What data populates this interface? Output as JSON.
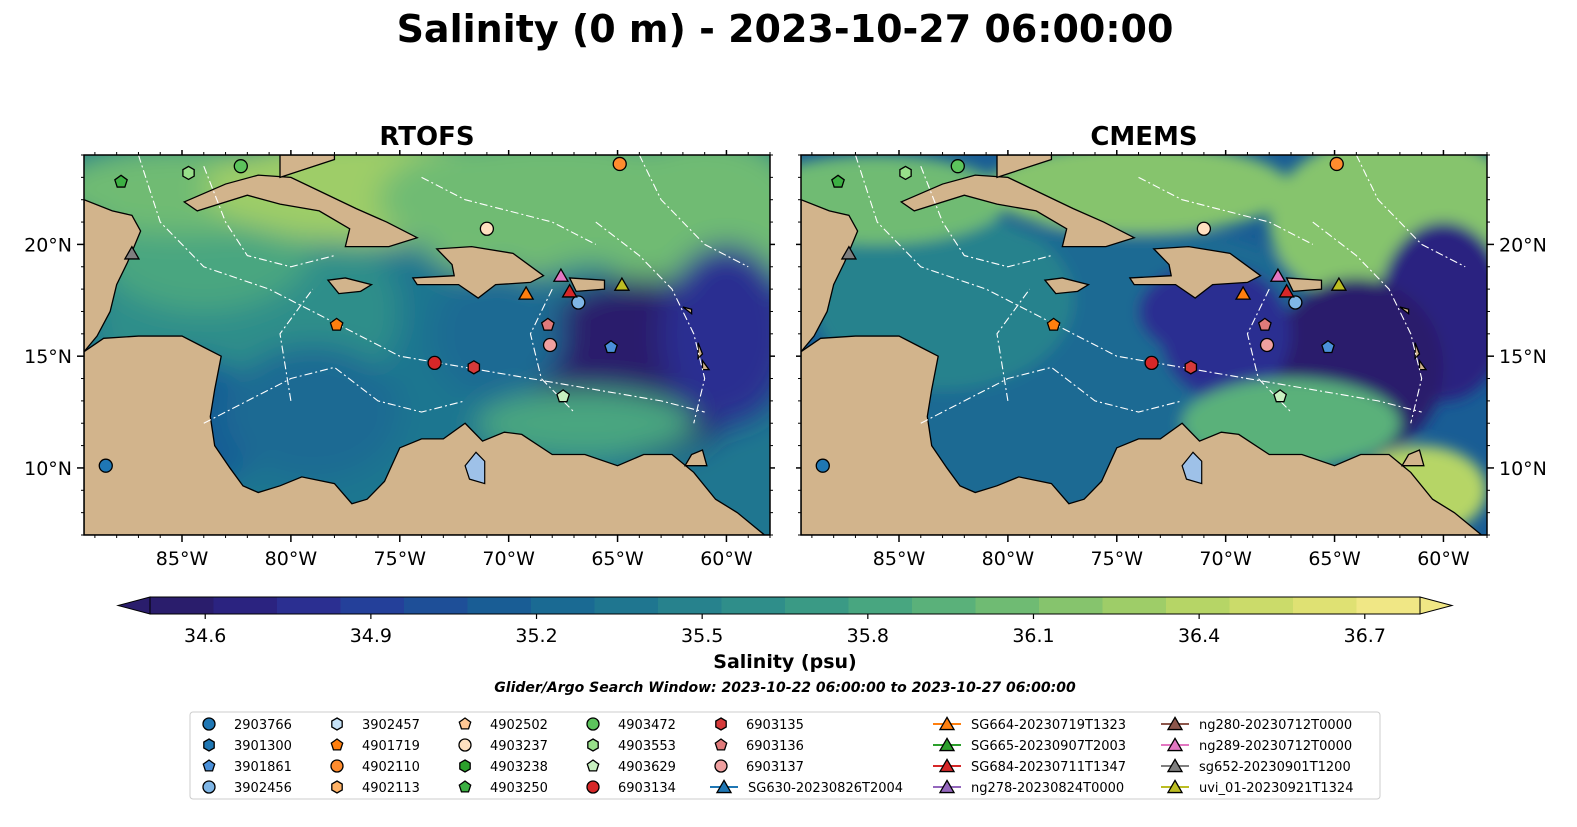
{
  "title": "Salinity (0 m) - 2023-10-27 06:00:00",
  "colors": {
    "land": "#d2b48c",
    "lake": "#9ec1e8",
    "contour": "#ffffff",
    "coast": "#000000"
  },
  "chart_data": [
    {
      "type": "heatmap",
      "title": "RTOFS",
      "model": "rtofs",
      "xlim": [
        -89.5,
        -58.0
      ],
      "ylim": [
        7.0,
        24.0
      ],
      "xticks": [
        -85,
        -80,
        -75,
        -70,
        -65,
        -60
      ],
      "xticklabels": [
        "85°W",
        "80°W",
        "75°W",
        "70°W",
        "65°W",
        "60°W"
      ],
      "yticks": [
        10,
        15,
        20
      ],
      "yticklabels": [
        "10°N",
        "15°N",
        "20°N"
      ],
      "ytick_side": "left"
    },
    {
      "type": "heatmap",
      "title": "CMEMS",
      "model": "cmems",
      "xlim": [
        -89.5,
        -58.0
      ],
      "ylim": [
        7.0,
        24.0
      ],
      "xticks": [
        -85,
        -80,
        -75,
        -70,
        -65,
        -60
      ],
      "xticklabels": [
        "85°W",
        "80°W",
        "75°W",
        "70°W",
        "65°W",
        "60°W"
      ],
      "yticks": [
        10,
        15,
        20
      ],
      "yticklabels": [
        "10°N",
        "15°N",
        "20°N"
      ],
      "ytick_side": "right"
    }
  ],
  "colorbar": {
    "label": "Salinity (psu)",
    "min": 34.5,
    "max": 36.8,
    "extend": "both",
    "ticks": [
      34.6,
      34.9,
      35.2,
      35.5,
      35.8,
      36.1,
      36.4,
      36.7
    ],
    "ticklabels": [
      "34.6",
      "34.9",
      "35.2",
      "35.5",
      "35.8",
      "36.1",
      "36.4",
      "36.7"
    ],
    "colors": [
      "#2a1d6c",
      "#2b2380",
      "#2b2f91",
      "#24409a",
      "#1e4f98",
      "#195d95",
      "#1a6a93",
      "#1f7690",
      "#27828d",
      "#2f8e8a",
      "#3a9a85",
      "#48a680",
      "#5ab17a",
      "#6fbb73",
      "#86c46d",
      "#9ecd68",
      "#b6d566",
      "#cbdb6a",
      "#dfe173",
      "#f0e785"
    ]
  },
  "search_window": "Glider/Argo Search Window: 2023-10-22 06:00:00 to 2023-10-27 06:00:00",
  "observations": [
    {
      "label": "2903766",
      "marker": "circle",
      "color": "#1f77b4",
      "lon": -88.5,
      "lat": 10.1,
      "line": false
    },
    {
      "label": "3901300",
      "marker": "hexagon",
      "color": "#1f77b4",
      "lon": null,
      "lat": null,
      "line": false
    },
    {
      "label": "3901861",
      "marker": "pentagon",
      "color": "#4a90d9",
      "lon": -65.3,
      "lat": 15.4,
      "line": false
    },
    {
      "label": "3902456",
      "marker": "circle",
      "color": "#7fb6e6",
      "lon": -66.8,
      "lat": 17.4,
      "line": false
    },
    {
      "label": "3902457",
      "marker": "hexagon",
      "color": "#c6e2f7",
      "lon": null,
      "lat": null,
      "line": false
    },
    {
      "label": "4901719",
      "marker": "pentagon",
      "color": "#ff7f0e",
      "lon": -77.9,
      "lat": 16.4,
      "line": false
    },
    {
      "label": "4902110",
      "marker": "circle",
      "color": "#ff8c2e",
      "lon": -64.9,
      "lat": 23.6,
      "line": false
    },
    {
      "label": "4902113",
      "marker": "hexagon",
      "color": "#ffb266",
      "lon": null,
      "lat": null,
      "line": false
    },
    {
      "label": "4902502",
      "marker": "pentagon",
      "color": "#ffc896",
      "lon": null,
      "lat": null,
      "line": false
    },
    {
      "label": "4903237",
      "marker": "circle",
      "color": "#ffe0c0",
      "lon": -71.0,
      "lat": 20.7,
      "line": false
    },
    {
      "label": "4903238",
      "marker": "hexagon",
      "color": "#2ca02c",
      "lon": null,
      "lat": null,
      "line": false
    },
    {
      "label": "4903250",
      "marker": "pentagon",
      "color": "#3cb043",
      "lon": -87.8,
      "lat": 22.8,
      "line": false
    },
    {
      "label": "4903472",
      "marker": "circle",
      "color": "#5cc35c",
      "lon": -82.3,
      "lat": 23.5,
      "line": false
    },
    {
      "label": "4903553",
      "marker": "hexagon",
      "color": "#98df8a",
      "lon": -84.7,
      "lat": 23.2,
      "line": false
    },
    {
      "label": "4903629",
      "marker": "pentagon",
      "color": "#c8f0c0",
      "lon": -67.5,
      "lat": 13.2,
      "line": false
    },
    {
      "label": "6903134",
      "marker": "circle",
      "color": "#d62728",
      "lon": -73.4,
      "lat": 14.7,
      "line": false
    },
    {
      "label": "6903135",
      "marker": "hexagon",
      "color": "#d63a3a",
      "lon": -71.6,
      "lat": 14.5,
      "line": false
    },
    {
      "label": "6903136",
      "marker": "pentagon",
      "color": "#e07a7a",
      "lon": -68.2,
      "lat": 16.4,
      "line": false
    },
    {
      "label": "6903137",
      "marker": "circle",
      "color": "#f0a0a0",
      "lon": -68.1,
      "lat": 15.5,
      "line": false
    },
    {
      "label": "SG630-20230826T2004",
      "marker": "triangle",
      "color": "#1f77b4",
      "lon": null,
      "lat": null,
      "line": true
    },
    {
      "label": "SG664-20230719T1323",
      "marker": "triangle",
      "color": "#ff7f0e",
      "lon": -69.2,
      "lat": 17.8,
      "line": true
    },
    {
      "label": "SG665-20230907T2003",
      "marker": "triangle",
      "color": "#2ca02c",
      "lon": null,
      "lat": null,
      "line": true
    },
    {
      "label": "SG684-20230711T1347",
      "marker": "triangle",
      "color": "#d62728",
      "lon": -67.2,
      "lat": 17.9,
      "line": true
    },
    {
      "label": "ng278-20230824T0000",
      "marker": "triangle",
      "color": "#9467bd",
      "lon": null,
      "lat": null,
      "line": true
    },
    {
      "label": "ng280-20230712T0000",
      "marker": "triangle",
      "color": "#8c564b",
      "lon": null,
      "lat": null,
      "line": true
    },
    {
      "label": "ng289-20230712T0000",
      "marker": "triangle",
      "color": "#e377c2",
      "lon": -67.6,
      "lat": 18.6,
      "line": true
    },
    {
      "label": "sg652-20230901T1200",
      "marker": "triangle",
      "color": "#7f7f7f",
      "lon": -87.3,
      "lat": 19.6,
      "line": true
    },
    {
      "label": "uvi_01-20230921T1324",
      "marker": "triangle",
      "color": "#bcbd22",
      "lon": -64.8,
      "lat": 18.2,
      "line": true
    }
  ]
}
